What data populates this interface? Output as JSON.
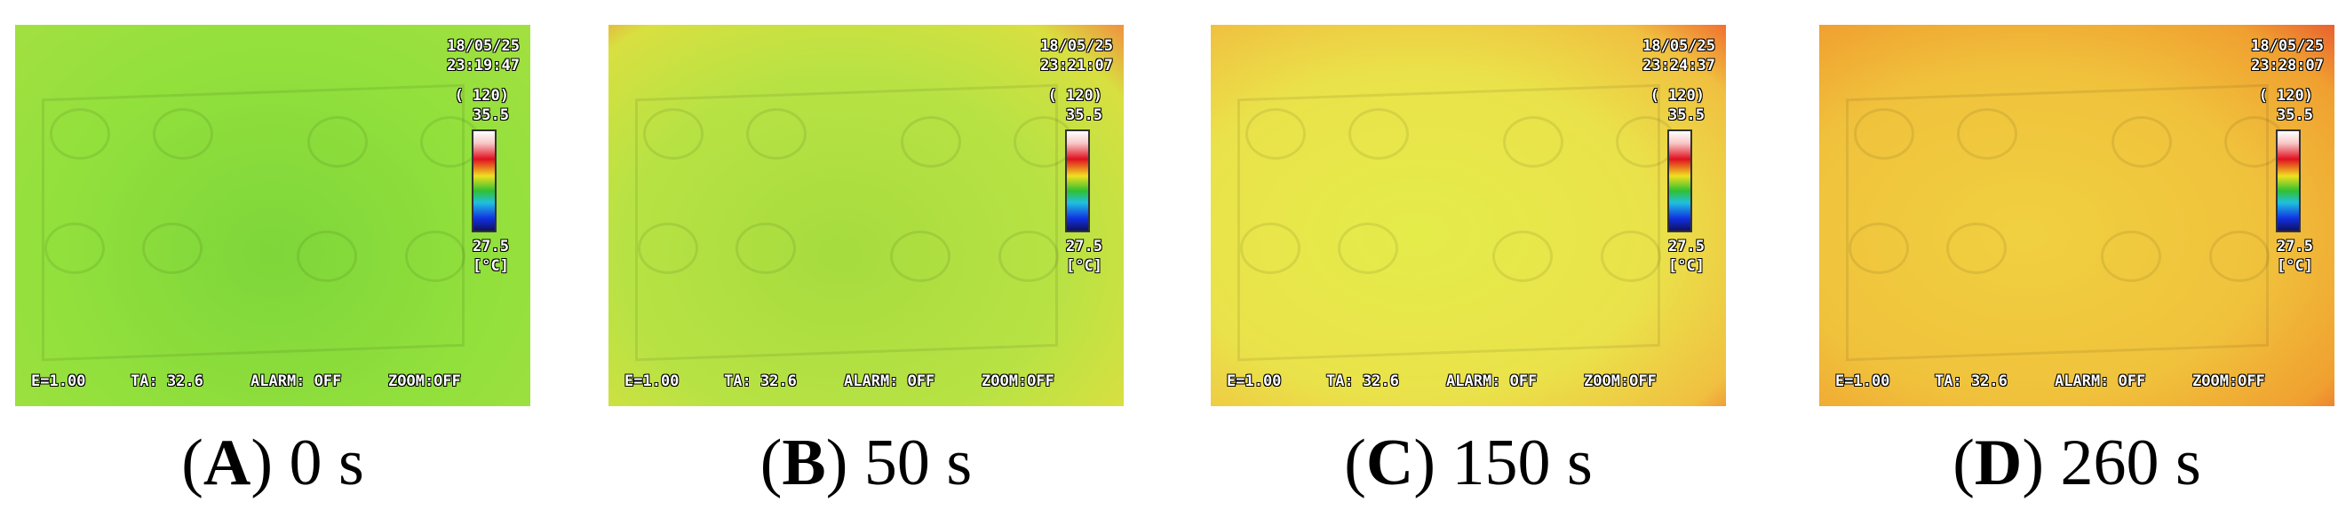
{
  "panels": [
    {
      "caption": [
        "(",
        "A",
        ") 0 s"
      ],
      "overlay": {
        "date": "18/05/25",
        "time": "23:19:47",
        "range": "( 120)",
        "max": "35.5",
        "min": "27.5",
        "unit": "[°C]",
        "status": [
          "E=1.00",
          "TA: 32.6",
          "ALARM: OFF",
          "ZOOM:OFF"
        ]
      }
    },
    {
      "caption": [
        "(",
        "B",
        ") 50 s"
      ],
      "overlay": {
        "date": "18/05/25",
        "time": "23:21:07",
        "range": "( 120)",
        "max": "35.5",
        "min": "27.5",
        "unit": "[°C]",
        "status": [
          "E=1.00",
          "TA: 32.6",
          "ALARM: OFF",
          "ZOOM:OFF"
        ]
      }
    },
    {
      "caption": [
        "(",
        "C",
        ") 150 s"
      ],
      "overlay": {
        "date": "18/05/25",
        "time": "23:24:37",
        "range": "( 120)",
        "max": "35.5",
        "min": "27.5",
        "unit": "[°C]",
        "status": [
          "E=1.00",
          "TA: 32.6",
          "ALARM: OFF",
          "ZOOM:OFF"
        ]
      }
    },
    {
      "caption": [
        "(",
        "D",
        ") 260 s"
      ],
      "overlay": {
        "date": "18/05/25",
        "time": "23:28:07",
        "range": "( 120)",
        "max": "35.5",
        "min": "27.5",
        "unit": "[°C]",
        "status": [
          "E=1.00",
          "TA: 32.6",
          "ALARM: OFF",
          "ZOOM:OFF"
        ]
      }
    }
  ]
}
